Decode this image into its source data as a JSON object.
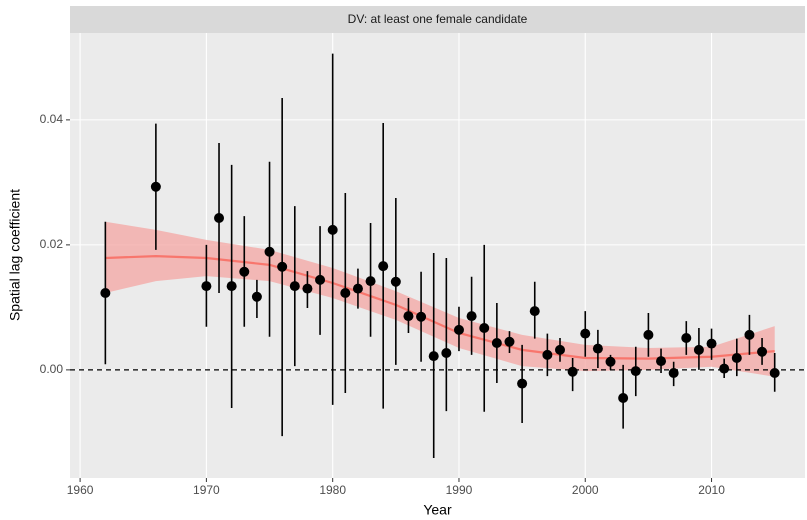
{
  "chart_data": {
    "type": "errorbar",
    "strip": "DV: at least one female candidate",
    "xlabel": "Year",
    "ylabel": "Spatial lag coefficient",
    "x": [
      1962,
      1966,
      1970,
      1971,
      1972,
      1973,
      1974,
      1975,
      1976,
      1977,
      1978,
      1979,
      1980,
      1981,
      1982,
      1983,
      1984,
      1985,
      1986,
      1987,
      1988,
      1989,
      1990,
      1991,
      1992,
      1993,
      1994,
      1995,
      1996,
      1997,
      1998,
      1999,
      2000,
      2001,
      2002,
      2003,
      2004,
      2005,
      2006,
      2007,
      2008,
      2009,
      2010,
      2011,
      2012,
      2013,
      2014,
      2015
    ],
    "values": [
      0.0123,
      0.0293,
      0.0134,
      0.0243,
      0.0134,
      0.0157,
      0.0117,
      0.0189,
      0.0165,
      0.0134,
      0.013,
      0.0144,
      0.0224,
      0.0123,
      0.013,
      0.0142,
      0.0166,
      0.0141,
      0.0086,
      0.0085,
      0.0022,
      0.0027,
      0.0064,
      0.0086,
      0.0067,
      0.0043,
      0.0045,
      -0.0022,
      0.0094,
      0.0024,
      0.0032,
      -0.0003,
      0.0058,
      0.0034,
      0.0013,
      -0.0045,
      -0.0002,
      0.0056,
      0.0014,
      -0.0005,
      0.0051,
      0.0032,
      0.0042,
      0.0002,
      0.0019,
      0.0056,
      0.0029,
      -0.0005
    ],
    "lower": [
      0.0009,
      0.0192,
      0.0069,
      0.0123,
      -0.0061,
      0.0069,
      0.0083,
      0.0053,
      -0.0106,
      0.0006,
      0.0099,
      0.0056,
      -0.0056,
      -0.0037,
      0.0098,
      0.0053,
      -0.0062,
      0.0008,
      0.0059,
      0.0013,
      -0.0141,
      -0.0066,
      0.003,
      0.0024,
      -0.0067,
      -0.0021,
      0.0027,
      -0.0085,
      0.005,
      -0.001,
      0.0013,
      -0.0034,
      0.0021,
      0.0003,
      0.0,
      -0.0094,
      -0.0042,
      0.0021,
      -0.0005,
      -0.0026,
      0.0024,
      0.0,
      0.0016,
      -0.0013,
      -0.001,
      0.0024,
      0.0008,
      -0.0035
    ],
    "upper": [
      0.0237,
      0.0394,
      0.02,
      0.0363,
      0.0328,
      0.0246,
      0.0144,
      0.0333,
      0.0435,
      0.0262,
      0.0158,
      0.023,
      0.0506,
      0.0283,
      0.0162,
      0.0235,
      0.0395,
      0.0275,
      0.0115,
      0.0157,
      0.0187,
      0.0179,
      0.0101,
      0.0149,
      0.02,
      0.0107,
      0.0062,
      0.004,
      0.0141,
      0.0058,
      0.0051,
      0.0019,
      0.0094,
      0.0064,
      0.0024,
      0.0008,
      0.0037,
      0.0091,
      0.0034,
      0.0013,
      0.0078,
      0.0067,
      0.0066,
      0.0018,
      0.005,
      0.0088,
      0.0051,
      0.0027
    ],
    "color": "#000000",
    "smooth": {
      "color": "#f8766d",
      "fill": "#f4a6a3",
      "x": [
        1962,
        1966,
        1970,
        1975,
        1980,
        1985,
        1990,
        1995,
        2000,
        2005,
        2010,
        2015
      ],
      "values": [
        0.0179,
        0.0182,
        0.0179,
        0.0168,
        0.0139,
        0.0104,
        0.0059,
        0.0032,
        0.0019,
        0.0018,
        0.0021,
        0.003
      ],
      "lower": [
        0.0123,
        0.0142,
        0.015,
        0.0142,
        0.0115,
        0.008,
        0.0035,
        0.0006,
        -0.0002,
        0.0,
        0.0005,
        -0.0011
      ],
      "upper": [
        0.0237,
        0.0224,
        0.0208,
        0.0192,
        0.0163,
        0.0126,
        0.0083,
        0.0056,
        0.004,
        0.0035,
        0.0037,
        0.007
      ]
    },
    "hline": 0,
    "xlim": [
      1959.2,
      2017.4
    ],
    "ylim": [
      -0.0173,
      0.0539
    ],
    "xticks": [
      1960,
      1970,
      1980,
      1990,
      2000,
      2010
    ],
    "yticks": [
      {
        "value": 0,
        "label": "0.00"
      },
      {
        "value": 0.02,
        "label": "0.02"
      },
      {
        "value": 0.04,
        "label": "0.04"
      }
    ],
    "grid": true
  }
}
